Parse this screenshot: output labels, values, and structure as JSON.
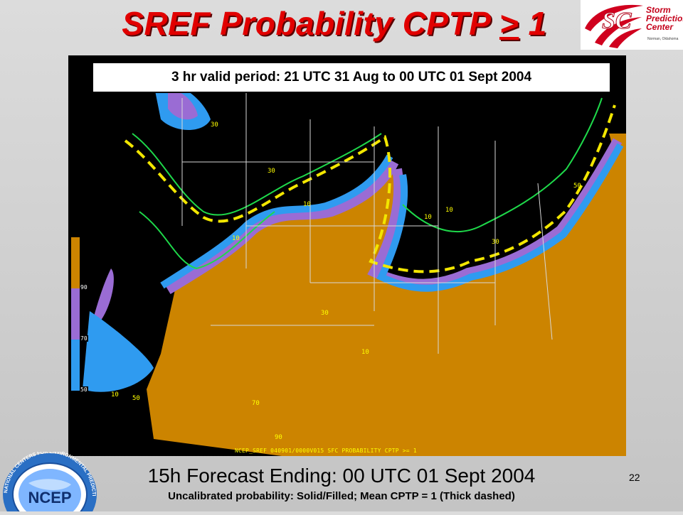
{
  "slide": {
    "title_main": "SREF Probability CPTP ",
    "title_ge": ">",
    "title_tail": " 1",
    "valid_period": "3 hr valid period: 21 UTC 31 Aug to 00 UTC 01 Sept 2004",
    "subtitle": "15h Forecast Ending: 00 UTC 01 Sept 2004",
    "caption": "Uncalibrated probability: Solid/Filled; Mean CPTP = 1 (Thick dashed)",
    "page_number": "22"
  },
  "logos": {
    "spc": {
      "line1": "Storm",
      "line2": "Prediction",
      "line3": "Center",
      "sub": "Norman, Oklahoma"
    },
    "ncep": {
      "text": "NCEP",
      "ring_text": "NATIONAL CENTERS FOR ENVIRONMENTAL PREDICTION"
    }
  },
  "map": {
    "footer": "NCEP_SREF 040901/0000V015 SFC PROBABILITY CPTP >= 1",
    "legend_ticks": [
      "90",
      "70",
      "50"
    ],
    "colors": {
      "background": "#000000",
      "p90": "#cc8400",
      "p70": "#9a6cd4",
      "p50": "#2f9bf0",
      "p10": "#1e8c3a",
      "contour": "#1ed94a",
      "mean_dashed": "#f2e600",
      "borders": "#d8d8d8"
    },
    "contour_labels": [
      "10",
      "30",
      "50",
      "70",
      "90"
    ]
  }
}
